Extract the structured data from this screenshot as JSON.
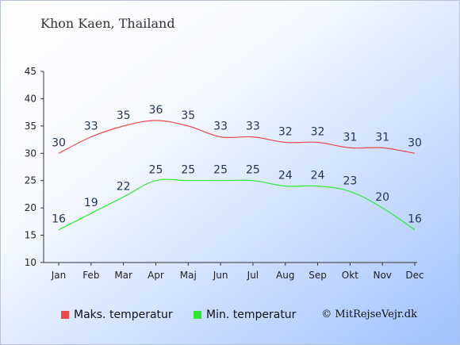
{
  "header": {
    "title": "Khon Kaen, Thailand"
  },
  "legend": [
    {
      "label": "Maks. temperatur",
      "color": "#e84a4a"
    },
    {
      "label": "Min. temperatur",
      "color": "#2ee82e"
    }
  ],
  "credit": "© MitRejseVejr.dk",
  "chart_data": {
    "type": "line",
    "title": "Khon Kaen, Thailand",
    "xlabel": "",
    "ylabel": "",
    "categories": [
      "Jan",
      "Feb",
      "Mar",
      "Apr",
      "Maj",
      "Jun",
      "Jul",
      "Aug",
      "Sep",
      "Okt",
      "Nov",
      "Dec"
    ],
    "ylim": [
      10,
      45
    ],
    "yticks": [
      10,
      15,
      20,
      25,
      30,
      35,
      40,
      45
    ],
    "grid": false,
    "legend_position": "bottom",
    "series": [
      {
        "name": "Maks. temperatur",
        "color": "#e84a4a",
        "values": [
          30,
          33,
          35,
          36,
          35,
          33,
          33,
          32,
          32,
          31,
          31,
          30
        ]
      },
      {
        "name": "Min. temperatur",
        "color": "#2ee82e",
        "values": [
          16,
          19,
          22,
          25,
          25,
          25,
          25,
          24,
          24,
          23,
          20,
          16
        ]
      }
    ]
  }
}
